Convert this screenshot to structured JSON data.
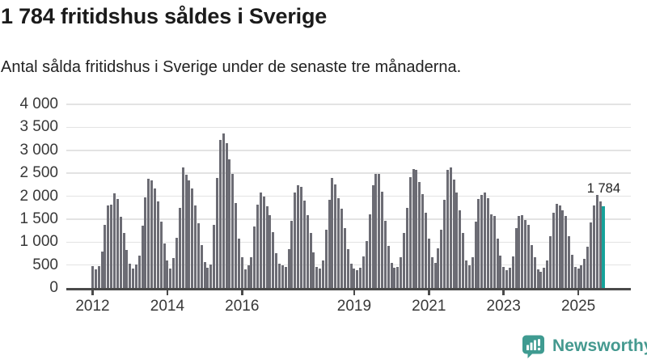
{
  "header": {
    "title": "1 784 fritidshus såldes i Sverige",
    "subtitle": "Antal sålda fritidshus i Sverige under de senaste tre månaderna."
  },
  "chart_data": {
    "type": "bar",
    "title": "1 784 fritidshus såldes i Sverige",
    "subtitle": "Antal sålda fritidshus i Sverige under de senaste tre månaderna.",
    "x_range": {
      "start": "2012-01",
      "end": "2025-09",
      "frequency": "monthly"
    },
    "ylim": [
      0,
      4000
    ],
    "grid": true,
    "legend": "none",
    "yticks": [
      {
        "v": 0,
        "label": "0"
      },
      {
        "v": 500,
        "label": "500"
      },
      {
        "v": 1000,
        "label": "1 000"
      },
      {
        "v": 1500,
        "label": "1 500"
      },
      {
        "v": 2000,
        "label": "2 000"
      },
      {
        "v": 2500,
        "label": "2 500"
      },
      {
        "v": 3000,
        "label": "3 000"
      },
      {
        "v": 3500,
        "label": "3 500"
      },
      {
        "v": 4000,
        "label": "4 000"
      }
    ],
    "xticks": [
      {
        "year": 2012,
        "label": "2012"
      },
      {
        "year": 2014,
        "label": "2014"
      },
      {
        "year": 2016,
        "label": "2016"
      },
      {
        "year": 2019,
        "label": "2019"
      },
      {
        "year": 2021,
        "label": "2021"
      },
      {
        "year": 2023,
        "label": "2023"
      },
      {
        "year": 2025,
        "label": "2025"
      }
    ],
    "values": [
      470,
      410,
      470,
      790,
      1375,
      1800,
      1810,
      2060,
      1940,
      1556,
      1205,
      825,
      532,
      415,
      503,
      708,
      1351,
      1966,
      2375,
      2346,
      2170,
      1878,
      1439,
      971,
      591,
      430,
      650,
      1100,
      1749,
      2630,
      2463,
      2350,
      2164,
      1796,
      1404,
      936,
      556,
      439,
      509,
      1375,
      2399,
      3217,
      3364,
      3159,
      2808,
      2486,
      1848,
      1076,
      667,
      404,
      491,
      678,
      1340,
      1808,
      2071,
      1983,
      1779,
      1592,
      1223,
      755,
      520,
      490,
      460,
      842,
      1457,
      2071,
      2235,
      2200,
      1896,
      1592,
      1194,
      784,
      462,
      421,
      608,
      1264,
      1925,
      2393,
      2247,
      1954,
      1732,
      1311,
      842,
      520,
      430,
      390,
      435,
      696,
      1018,
      1603,
      2246,
      2492,
      2480,
      2100,
      1468,
      912,
      550,
      435,
      462,
      667,
      1193,
      1749,
      2422,
      2597,
      2568,
      2305,
      2042,
      1632,
      1076,
      678,
      550,
      871,
      1263,
      1924,
      2568,
      2626,
      2363,
      2071,
      1700,
      1200,
      608,
      491,
      667,
      1450,
      1930,
      2020,
      2088,
      1959,
      1608,
      1573,
      1080,
      700,
      450,
      390,
      440,
      696,
      1310,
      1573,
      1585,
      1486,
      1369,
      930,
      667,
      404,
      345,
      433,
      608,
      1135,
      1632,
      1837,
      1790,
      1690,
      1573,
      1135,
      725,
      462,
      430,
      500,
      630,
      895,
      1420,
      1800,
      2023,
      1889,
      1784
    ],
    "highlight": {
      "index": 164,
      "value": 1784,
      "label": "1 784"
    },
    "colors": {
      "bar": "#6c6c74",
      "highlight": "#16a29a",
      "grid": "#e3e3e3",
      "axis": "#4a4a4a"
    }
  },
  "footer": {
    "brand": "Newsworthy",
    "brand_color": "#44998f",
    "logo_icon": "newsworthy-chart-bubble-icon"
  }
}
